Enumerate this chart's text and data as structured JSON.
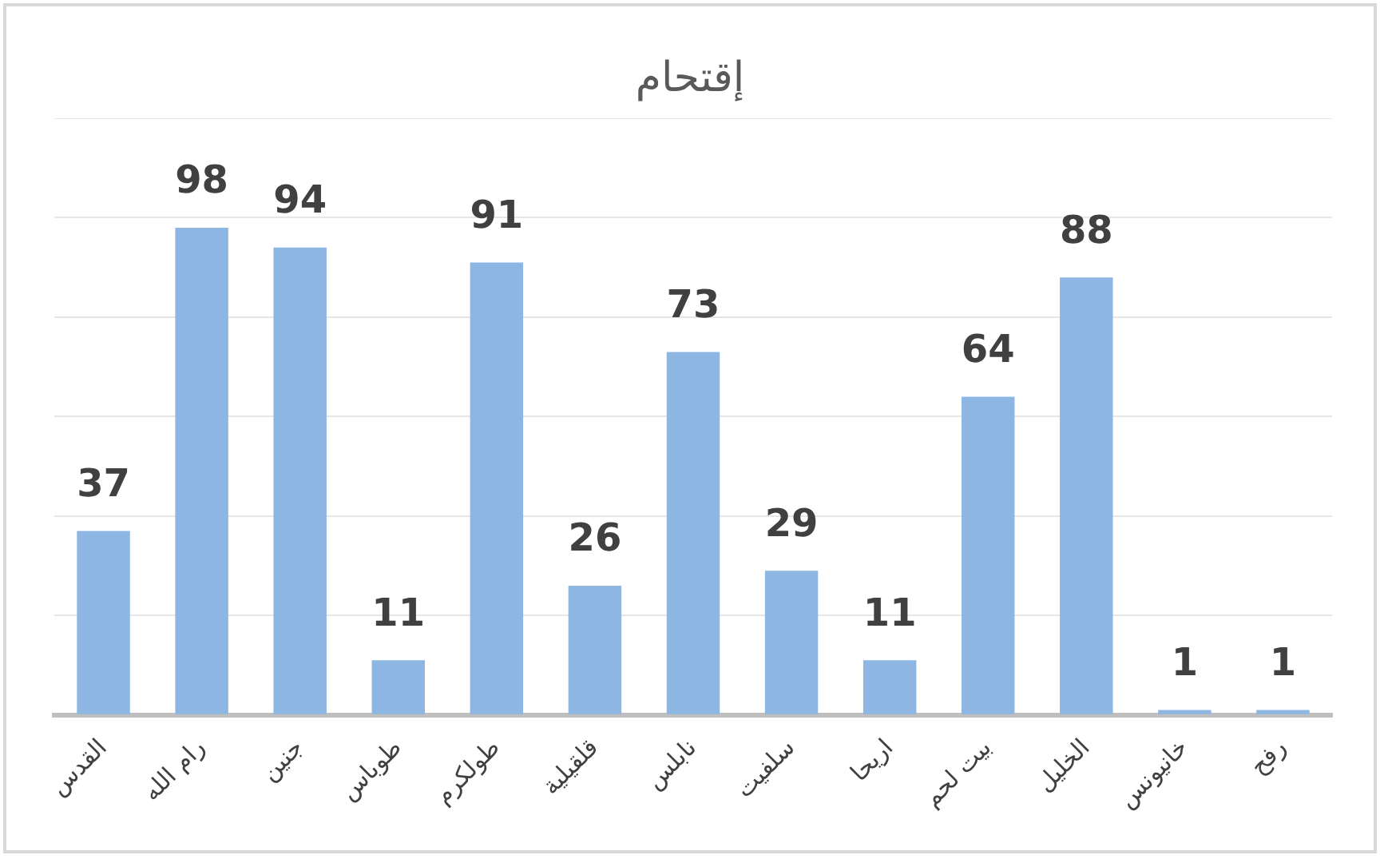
{
  "chart_data": {
    "type": "bar",
    "title": "إقتحام",
    "categories": [
      "القدس",
      "رام الله",
      "جنين",
      "طوباس",
      "طولكرم",
      "قلقيلية",
      "نابلس",
      "سلفيت",
      "اريحا",
      "بيت لحم",
      "الخليل",
      "خانيونس",
      "رفح"
    ],
    "values": [
      37,
      98,
      94,
      11,
      91,
      26,
      73,
      29,
      11,
      64,
      88,
      1,
      1
    ],
    "color": "#8db6e2",
    "ylim": [
      0,
      120
    ],
    "yticks": [
      {
        "value": 0,
        "label": null
      },
      {
        "value": 20,
        "label": null
      },
      {
        "value": 40,
        "label": null
      },
      {
        "value": 60,
        "label": null
      },
      {
        "value": 80,
        "label": null
      },
      {
        "value": 100,
        "label": null
      },
      {
        "value": 120,
        "label": null
      }
    ],
    "grid": "y",
    "legend": false,
    "data_labels": true,
    "tick_labels": "x"
  }
}
